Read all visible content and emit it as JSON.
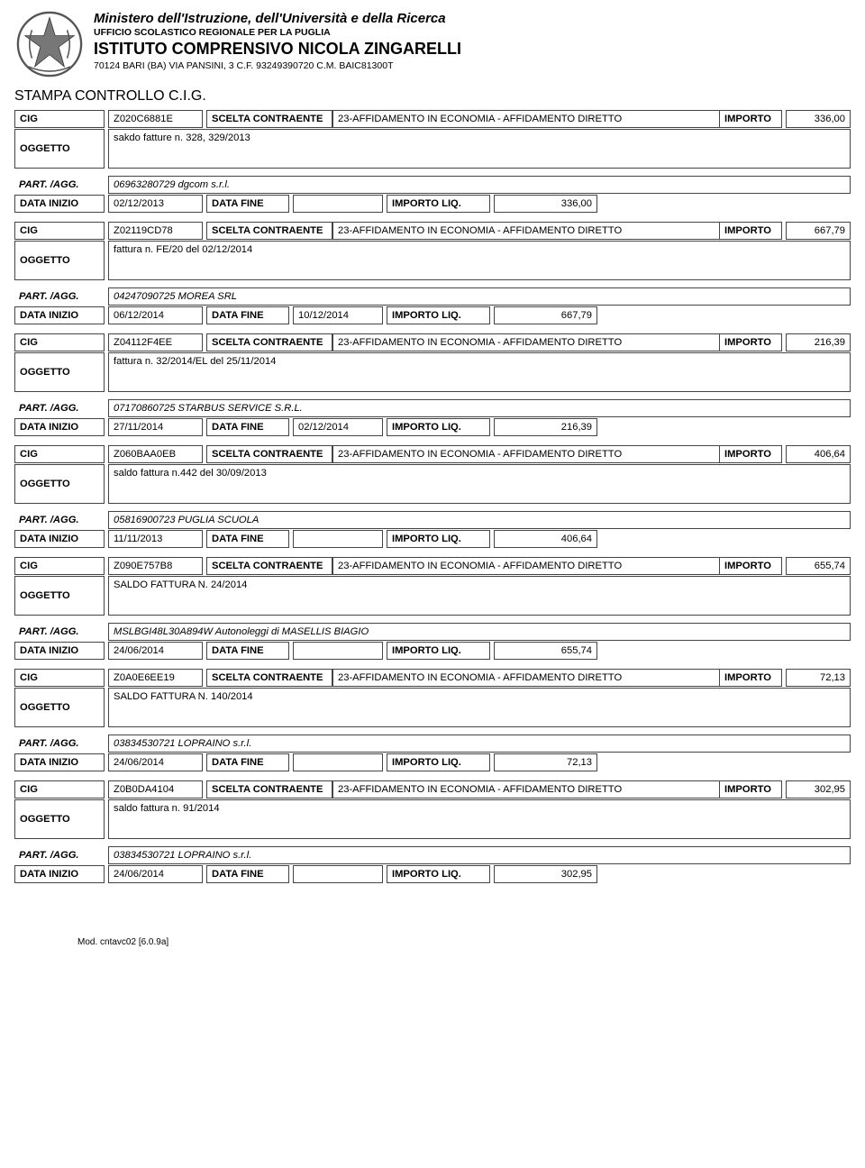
{
  "header": {
    "ministero": "Ministero dell'Istruzione, dell'Università e della Ricerca",
    "ufficio": "UFFICIO SCOLASTICO REGIONALE PER LA PUGLIA",
    "istituto": "ISTITUTO COMPRENSIVO NICOLA ZINGARELLI",
    "addr": "70124 BARI (BA) VIA PANSINI, 3 C.F. 93249390720 C.M. BAIC81300T"
  },
  "section_title": "STAMPA CONTROLLO C.I.G.",
  "labels": {
    "cig": "CIG",
    "scelta": "SCELTA CONTRAENTE",
    "importo": "IMPORTO",
    "oggetto": "OGGETTO",
    "part": "PART. /AGG.",
    "data_inizio": "DATA INIZIO",
    "data_fine": "DATA FINE",
    "importo_liq": "IMPORTO LIQ."
  },
  "scelta_text": "23-AFFIDAMENTO IN ECONOMIA - AFFIDAMENTO DIRETTO",
  "records": [
    {
      "cig": "Z020C6881E",
      "importo": "336,00",
      "oggetto": "sakdo fatture n. 328, 329/2013",
      "part": "06963280729  dgcom s.r.l.",
      "data_inizio": "02/12/2013",
      "data_fine": "",
      "importo_liq": "336,00"
    },
    {
      "cig": "Z02119CD78",
      "importo": "667,79",
      "oggetto": "fattura n. FE/20 del 02/12/2014",
      "part": "04247090725  MOREA SRL",
      "data_inizio": "06/12/2014",
      "data_fine": "10/12/2014",
      "importo_liq": "667,79"
    },
    {
      "cig": "Z04112F4EE",
      "importo": "216,39",
      "oggetto": "fattura n. 32/2014/EL del 25/11/2014",
      "part": "07170860725  STARBUS SERVICE S.R.L.",
      "data_inizio": "27/11/2014",
      "data_fine": "02/12/2014",
      "importo_liq": "216,39"
    },
    {
      "cig": "Z060BAA0EB",
      "importo": "406,64",
      "oggetto": "saldo fattura n.442 del 30/09/2013",
      "part": "05816900723  PUGLIA SCUOLA",
      "data_inizio": "11/11/2013",
      "data_fine": "",
      "importo_liq": "406,64"
    },
    {
      "cig": "Z090E757B8",
      "importo": "655,74",
      "oggetto": "SALDO FATTURA N. 24/2014",
      "part": "MSLBGI48L30A894W  Autonoleggi di MASELLIS BIAGIO",
      "data_inizio": "24/06/2014",
      "data_fine": "",
      "importo_liq": "655,74"
    },
    {
      "cig": "Z0A0E6EE19",
      "importo": "72,13",
      "oggetto": "SALDO FATTURA N. 140/2014",
      "part": "03834530721  LOPRAINO s.r.l.",
      "data_inizio": "24/06/2014",
      "data_fine": "",
      "importo_liq": "72,13"
    },
    {
      "cig": "Z0B0DA4104",
      "importo": "302,95",
      "oggetto": "saldo fattura n. 91/2014",
      "part": "03834530721  LOPRAINO s.r.l.",
      "data_inizio": "24/06/2014",
      "data_fine": "",
      "importo_liq": "302,95"
    }
  ],
  "footer": "Mod. cntavc02 [6.0.9a]"
}
